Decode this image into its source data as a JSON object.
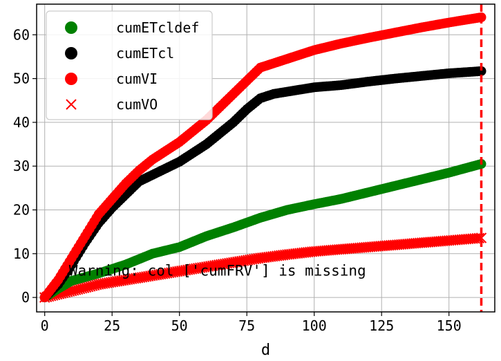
{
  "chart_data": {
    "type": "scatter",
    "title": "",
    "xlabel": "d",
    "ylabel": "",
    "xlim": [
      -3,
      167
    ],
    "ylim": [
      -3.3,
      67
    ],
    "xticks": [
      0,
      25,
      50,
      75,
      100,
      125,
      150
    ],
    "yticks": [
      0,
      10,
      20,
      30,
      40,
      50,
      60
    ],
    "tick_labels_x": [
      "0",
      "25",
      "50",
      "75",
      "100",
      "125",
      "150"
    ],
    "tick_labels_y": [
      "0",
      "10",
      "20",
      "30",
      "40",
      "50",
      "60"
    ],
    "grid": true,
    "legend_position": "top-left",
    "vline": {
      "x": 162,
      "color": "#ff0000",
      "style": "dashed"
    },
    "annotation": {
      "text": "Warning: col ['cumFRV'] is missing",
      "x": 9,
      "y": 5
    },
    "series": [
      {
        "name": "cumETcldef",
        "color": "#008000",
        "marker": "circle",
        "points": [
          [
            0,
            0
          ],
          [
            5,
            2
          ],
          [
            10,
            3.8
          ],
          [
            20,
            5.5
          ],
          [
            30,
            7.5
          ],
          [
            40,
            10
          ],
          [
            50,
            11.5
          ],
          [
            60,
            14
          ],
          [
            70,
            16
          ],
          [
            80,
            18.2
          ],
          [
            90,
            20
          ],
          [
            100,
            21.3
          ],
          [
            110,
            22.5
          ],
          [
            120,
            24
          ],
          [
            130,
            25.5
          ],
          [
            140,
            27
          ],
          [
            150,
            28.5
          ],
          [
            162,
            30.5
          ]
        ]
      },
      {
        "name": "cumETcl",
        "color": "#000000",
        "marker": "circle",
        "points": [
          [
            0,
            0
          ],
          [
            5,
            3
          ],
          [
            10,
            7.5
          ],
          [
            15,
            12.5
          ],
          [
            20,
            17
          ],
          [
            25,
            20.5
          ],
          [
            30,
            23.5
          ],
          [
            35,
            26.5
          ],
          [
            40,
            28
          ],
          [
            45,
            29.5
          ],
          [
            50,
            31
          ],
          [
            55,
            33
          ],
          [
            60,
            35
          ],
          [
            65,
            37.5
          ],
          [
            70,
            40
          ],
          [
            75,
            43
          ],
          [
            80,
            45.5
          ],
          [
            85,
            46.5
          ],
          [
            90,
            47
          ],
          [
            100,
            48
          ],
          [
            110,
            48.5
          ],
          [
            120,
            49.3
          ],
          [
            130,
            50
          ],
          [
            140,
            50.6
          ],
          [
            150,
            51.2
          ],
          [
            162,
            51.7
          ]
        ]
      },
      {
        "name": "cumVI",
        "color": "#ff0000",
        "marker": "circle",
        "points": [
          [
            0,
            0
          ],
          [
            5,
            4
          ],
          [
            10,
            9
          ],
          [
            15,
            14
          ],
          [
            20,
            19
          ],
          [
            25,
            22.5
          ],
          [
            30,
            26
          ],
          [
            35,
            29
          ],
          [
            40,
            31.5
          ],
          [
            45,
            33.5
          ],
          [
            50,
            35.5
          ],
          [
            55,
            38
          ],
          [
            60,
            40.5
          ],
          [
            65,
            43.5
          ],
          [
            70,
            46.5
          ],
          [
            75,
            49.5
          ],
          [
            80,
            52.5
          ],
          [
            90,
            54.5
          ],
          [
            100,
            56.5
          ],
          [
            110,
            58
          ],
          [
            120,
            59.3
          ],
          [
            130,
            60.5
          ],
          [
            140,
            61.7
          ],
          [
            150,
            62.8
          ],
          [
            162,
            64
          ]
        ]
      },
      {
        "name": "cumVO",
        "color": "#ff0000",
        "marker": "x",
        "points": [
          [
            0,
            0
          ],
          [
            10,
            1.5
          ],
          [
            20,
            3
          ],
          [
            30,
            4
          ],
          [
            40,
            5
          ],
          [
            50,
            6
          ],
          [
            60,
            7
          ],
          [
            70,
            8
          ],
          [
            80,
            9
          ],
          [
            90,
            9.8
          ],
          [
            100,
            10.5
          ],
          [
            110,
            11
          ],
          [
            120,
            11.5
          ],
          [
            130,
            12
          ],
          [
            140,
            12.5
          ],
          [
            150,
            13
          ],
          [
            162,
            13.6
          ]
        ]
      }
    ]
  }
}
